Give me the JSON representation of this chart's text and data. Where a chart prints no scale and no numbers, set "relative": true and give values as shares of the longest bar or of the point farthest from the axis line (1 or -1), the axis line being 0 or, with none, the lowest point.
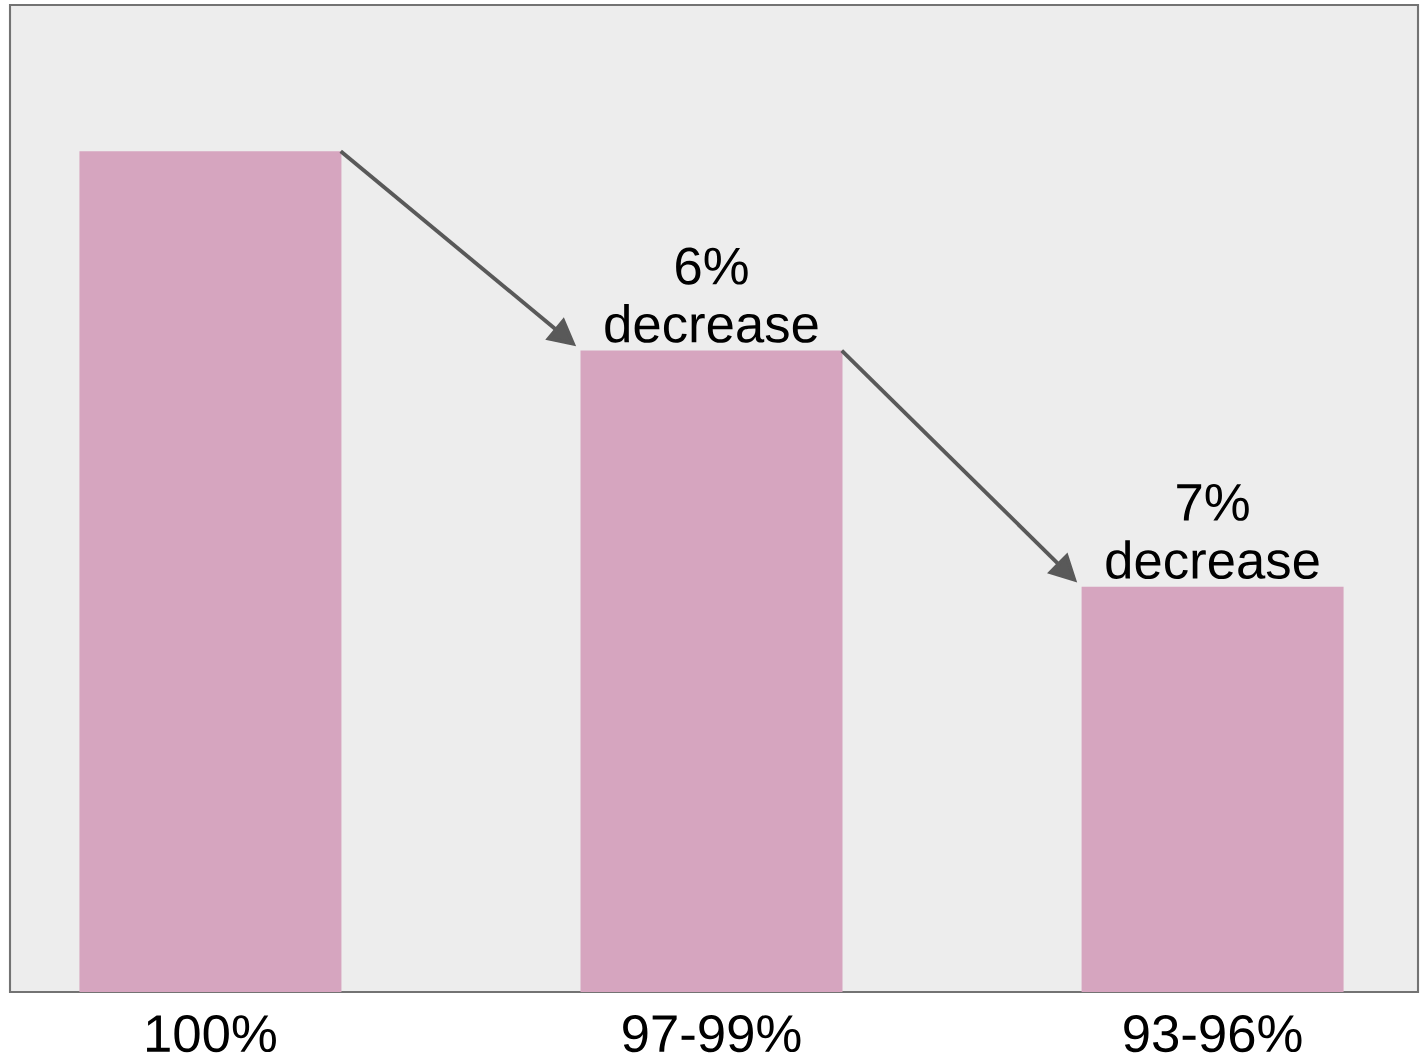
{
  "chart_data": {
    "type": "bar",
    "relative": true,
    "categories": [
      "100%",
      "97-99%",
      "93-96%"
    ],
    "values": [
      1,
      0.763,
      0.482
    ],
    "color": "#d6a5bf",
    "annotations": [
      {
        "text": "6% decrease",
        "x": "97-99%",
        "y": 0.763
      },
      {
        "text": "7% decrease",
        "x": "93-96%",
        "y": 0.482
      }
    ]
  }
}
